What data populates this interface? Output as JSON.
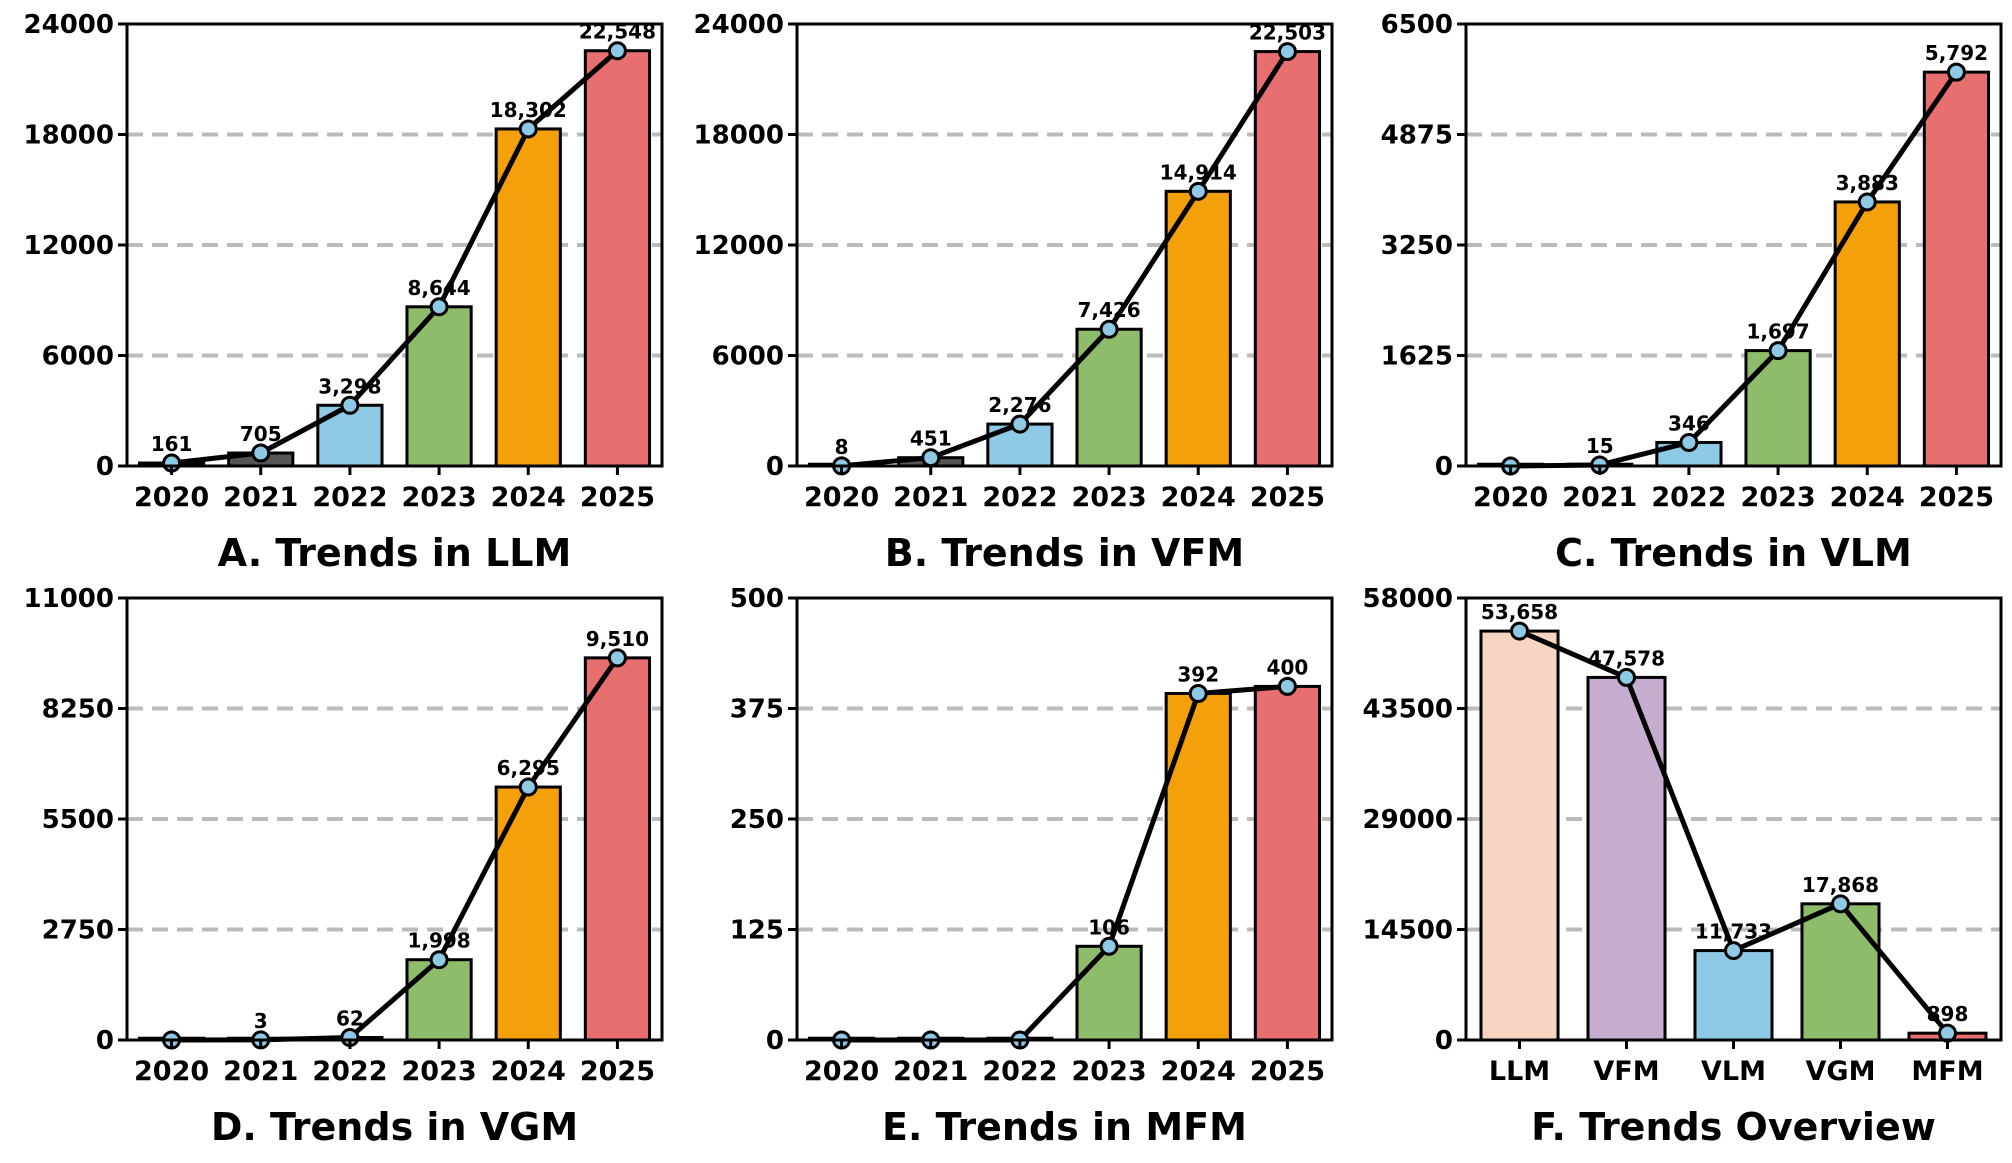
{
  "chart_data": [
    {
      "type": "bar",
      "title": "A. Trends in LLM",
      "categories": [
        "2020",
        "2021",
        "2022",
        "2023",
        "2024",
        "2025"
      ],
      "values": [
        161,
        705,
        3298,
        8644,
        18302,
        22548
      ],
      "value_labels": [
        "161",
        "705",
        "3,298",
        "8,644",
        "18,302",
        "22,548"
      ],
      "ylim": [
        0,
        24000
      ],
      "yticks": [
        "0",
        "6000",
        "12000",
        "18000",
        "24000"
      ],
      "bar_colors": [
        "#555555",
        "#555555",
        "#8ecae6",
        "#8fbc6a",
        "#f4a00a",
        "#e76f6f"
      ],
      "line_overlay": true,
      "grid": "horizontal-dashed"
    },
    {
      "type": "bar",
      "title": "B. Trends in VFM",
      "categories": [
        "2020",
        "2021",
        "2022",
        "2023",
        "2024",
        "2025"
      ],
      "values": [
        8,
        451,
        2276,
        7426,
        14914,
        22503
      ],
      "value_labels": [
        "8",
        "451",
        "2,276",
        "7,426",
        "14,914",
        "22,503"
      ],
      "ylim": [
        0,
        24000
      ],
      "yticks": [
        "0",
        "6000",
        "12000",
        "18000",
        "24000"
      ],
      "bar_colors": [
        "#555555",
        "#555555",
        "#8ecae6",
        "#8fbc6a",
        "#f4a00a",
        "#e76f6f"
      ],
      "line_overlay": true,
      "grid": "horizontal-dashed"
    },
    {
      "type": "bar",
      "title": "C. Trends in VLM",
      "categories": [
        "2020",
        "2021",
        "2022",
        "2023",
        "2024",
        "2025"
      ],
      "values": [
        0,
        15,
        346,
        1697,
        3883,
        5792
      ],
      "value_labels": [
        "",
        "15",
        "346",
        "1,697",
        "3,883",
        "5,792"
      ],
      "ylim": [
        0,
        6500
      ],
      "yticks": [
        "0",
        "1625",
        "3250",
        "4875",
        "6500"
      ],
      "bar_colors": [
        "#555555",
        "#555555",
        "#8ecae6",
        "#8fbc6a",
        "#f4a00a",
        "#e76f6f"
      ],
      "line_overlay": true,
      "grid": "horizontal-dashed"
    },
    {
      "type": "bar",
      "title": "D. Trends in VGM",
      "categories": [
        "2020",
        "2021",
        "2022",
        "2023",
        "2024",
        "2025"
      ],
      "values": [
        0,
        3,
        62,
        1998,
        6295,
        9510
      ],
      "value_labels": [
        "",
        "3",
        "62",
        "1,998",
        "6,295",
        "9,510"
      ],
      "ylim": [
        0,
        11000
      ],
      "yticks": [
        "0",
        "2750",
        "5500",
        "8250",
        "11000"
      ],
      "bar_colors": [
        "#555555",
        "#555555",
        "#8ecae6",
        "#8fbc6a",
        "#f4a00a",
        "#e76f6f"
      ],
      "line_overlay": true,
      "grid": "horizontal-dashed"
    },
    {
      "type": "bar",
      "title": "E. Trends in MFM",
      "categories": [
        "2020",
        "2021",
        "2022",
        "2023",
        "2024",
        "2025"
      ],
      "values": [
        0,
        0,
        0,
        106,
        392,
        400
      ],
      "value_labels": [
        "",
        "",
        "",
        "106",
        "392",
        "400"
      ],
      "ylim": [
        0,
        500
      ],
      "yticks": [
        "0",
        "125",
        "250",
        "375",
        "500"
      ],
      "bar_colors": [
        "#555555",
        "#555555",
        "#8ecae6",
        "#8fbc6a",
        "#f4a00a",
        "#e76f6f"
      ],
      "line_overlay": true,
      "grid": "horizontal-dashed"
    },
    {
      "type": "bar",
      "title": "F. Trends Overview",
      "categories": [
        "LLM",
        "VFM",
        "VLM",
        "VGM",
        "MFM"
      ],
      "values": [
        53658,
        47578,
        11733,
        17868,
        898
      ],
      "value_labels": [
        "53,658",
        "47,578",
        "11,733",
        "17,868",
        "898"
      ],
      "ylim": [
        0,
        58000
      ],
      "yticks": [
        "0",
        "14500",
        "29000",
        "43500",
        "58000"
      ],
      "bar_colors": [
        "#f7d5c2",
        "#c5aed0",
        "#8ecae6",
        "#8fbc6a",
        "#e76f6f"
      ],
      "line_overlay": true,
      "grid": "horizontal-dashed"
    }
  ],
  "style": {
    "line_color": "#000000",
    "marker_fill": "#8ecae6",
    "grid_color": "#bbbbbb",
    "edge_color": "#000000"
  }
}
